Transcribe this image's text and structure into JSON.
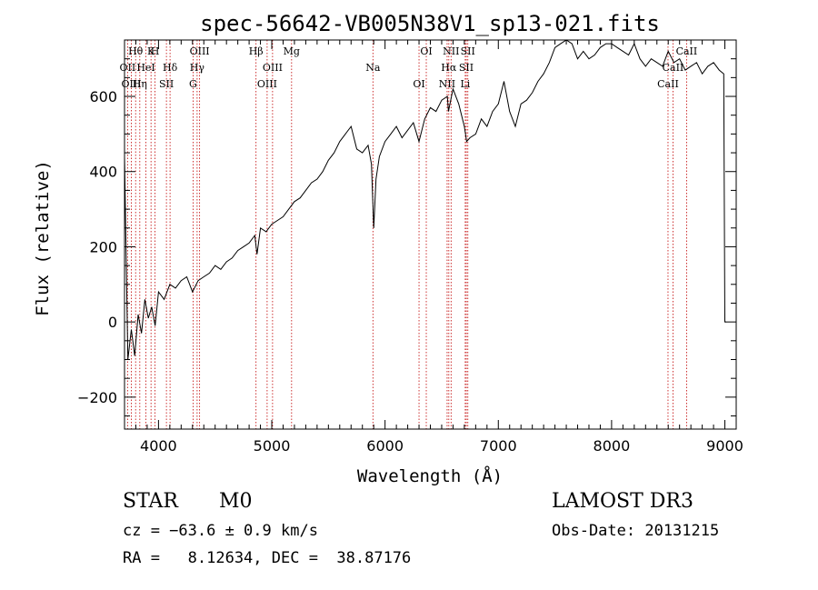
{
  "chart_data": {
    "type": "line",
    "title": "spec-56642-VB005N38V1_sp13-021.fits",
    "xlabel": "Wavelength (Å)",
    "ylabel": "Flux (relative)",
    "xlim": [
      3700,
      9100
    ],
    "ylim": [
      -285,
      750
    ],
    "xticks": [
      4000,
      5000,
      6000,
      7000,
      8000,
      9000
    ],
    "yticks": [
      -200,
      0,
      200,
      400,
      600
    ],
    "series": [
      {
        "name": "flux",
        "x": [
          3700,
          3730,
          3760,
          3790,
          3820,
          3850,
          3880,
          3910,
          3940,
          3970,
          4000,
          4050,
          4100,
          4150,
          4200,
          4250,
          4300,
          4350,
          4400,
          4450,
          4500,
          4550,
          4600,
          4650,
          4700,
          4750,
          4800,
          4850,
          4870,
          4900,
          4950,
          5000,
          5050,
          5100,
          5150,
          5200,
          5250,
          5300,
          5350,
          5400,
          5450,
          5500,
          5550,
          5600,
          5650,
          5700,
          5750,
          5800,
          5850,
          5880,
          5900,
          5920,
          5950,
          6000,
          6050,
          6100,
          6150,
          6200,
          6250,
          6300,
          6350,
          6400,
          6450,
          6500,
          6550,
          6560,
          6600,
          6650,
          6700,
          6720,
          6750,
          6800,
          6850,
          6900,
          6950,
          7000,
          7050,
          7100,
          7150,
          7200,
          7250,
          7300,
          7350,
          7400,
          7450,
          7500,
          7550,
          7600,
          7650,
          7700,
          7750,
          7800,
          7850,
          7900,
          7950,
          8000,
          8050,
          8100,
          8150,
          8200,
          8250,
          8300,
          8350,
          8400,
          8450,
          8500,
          8550,
          8600,
          8650,
          8700,
          8750,
          8800,
          8850,
          8900,
          8950,
          8990,
          9000,
          9010
        ],
        "y": [
          440,
          -100,
          -20,
          -90,
          20,
          -30,
          60,
          10,
          40,
          -10,
          80,
          60,
          100,
          90,
          110,
          120,
          80,
          110,
          120,
          130,
          150,
          140,
          160,
          170,
          190,
          200,
          210,
          230,
          180,
          250,
          240,
          260,
          270,
          280,
          300,
          320,
          330,
          350,
          370,
          380,
          400,
          430,
          450,
          480,
          500,
          520,
          460,
          450,
          470,
          420,
          250,
          380,
          440,
          480,
          500,
          520,
          490,
          510,
          530,
          480,
          540,
          570,
          560,
          590,
          600,
          560,
          620,
          580,
          520,
          480,
          490,
          500,
          540,
          520,
          560,
          580,
          640,
          560,
          520,
          580,
          590,
          610,
          640,
          660,
          690,
          730,
          740,
          750,
          740,
          700,
          720,
          700,
          710,
          730,
          740,
          740,
          730,
          720,
          710,
          740,
          700,
          680,
          700,
          690,
          680,
          720,
          690,
          700,
          670,
          680,
          690,
          660,
          680,
          690,
          670,
          660,
          0,
          0
        ]
      }
    ],
    "lines": [
      {
        "label": "Hθ",
        "x": 3798
      },
      {
        "label": "OII",
        "x": 3727
      },
      {
        "label": "OIII",
        "x": 3760
      },
      {
        "label": "K",
        "x": 3934
      },
      {
        "label": "HeI",
        "x": 3889
      },
      {
        "label": "Hη",
        "x": 3835
      },
      {
        "label": "H",
        "x": 3969
      },
      {
        "label": "Hδ",
        "x": 4102
      },
      {
        "label": "SII",
        "x": 4070
      },
      {
        "label": "OIII",
        "x": 4363
      },
      {
        "label": "Hγ",
        "x": 4341
      },
      {
        "label": "G",
        "x": 4305
      },
      {
        "label": "Hβ",
        "x": 4861
      },
      {
        "label": "OIII",
        "x": 5007
      },
      {
        "label": "OIII",
        "x": 4959
      },
      {
        "label": "Mg",
        "x": 5175
      },
      {
        "label": "Na",
        "x": 5893
      },
      {
        "label": "OI",
        "x": 6300
      },
      {
        "label": "OI",
        "x": 6364
      },
      {
        "label": "Hα",
        "x": 6563
      },
      {
        "label": "NII",
        "x": 6548
      },
      {
        "label": "NII",
        "x": 6583
      },
      {
        "label": "SII",
        "x": 6717
      },
      {
        "label": "Li",
        "x": 6708
      },
      {
        "label": "SII",
        "x": 6731
      },
      {
        "label": "CaII",
        "x": 8542
      },
      {
        "label": "CaII",
        "x": 8498
      },
      {
        "label": "CaII",
        "x": 8662
      }
    ]
  },
  "info": {
    "object_class": "STAR",
    "subclass": "M0",
    "survey": "LAMOST DR3",
    "cz": "cz = −63.6 ± 0.9 km/s",
    "obs_date": "Obs-Date: 20131215",
    "coords": "RA =   8.12634, DEC =  38.87176"
  },
  "colors": {
    "spectrum": "#000000",
    "line_marker": "#c00000",
    "axis": "#000000"
  }
}
